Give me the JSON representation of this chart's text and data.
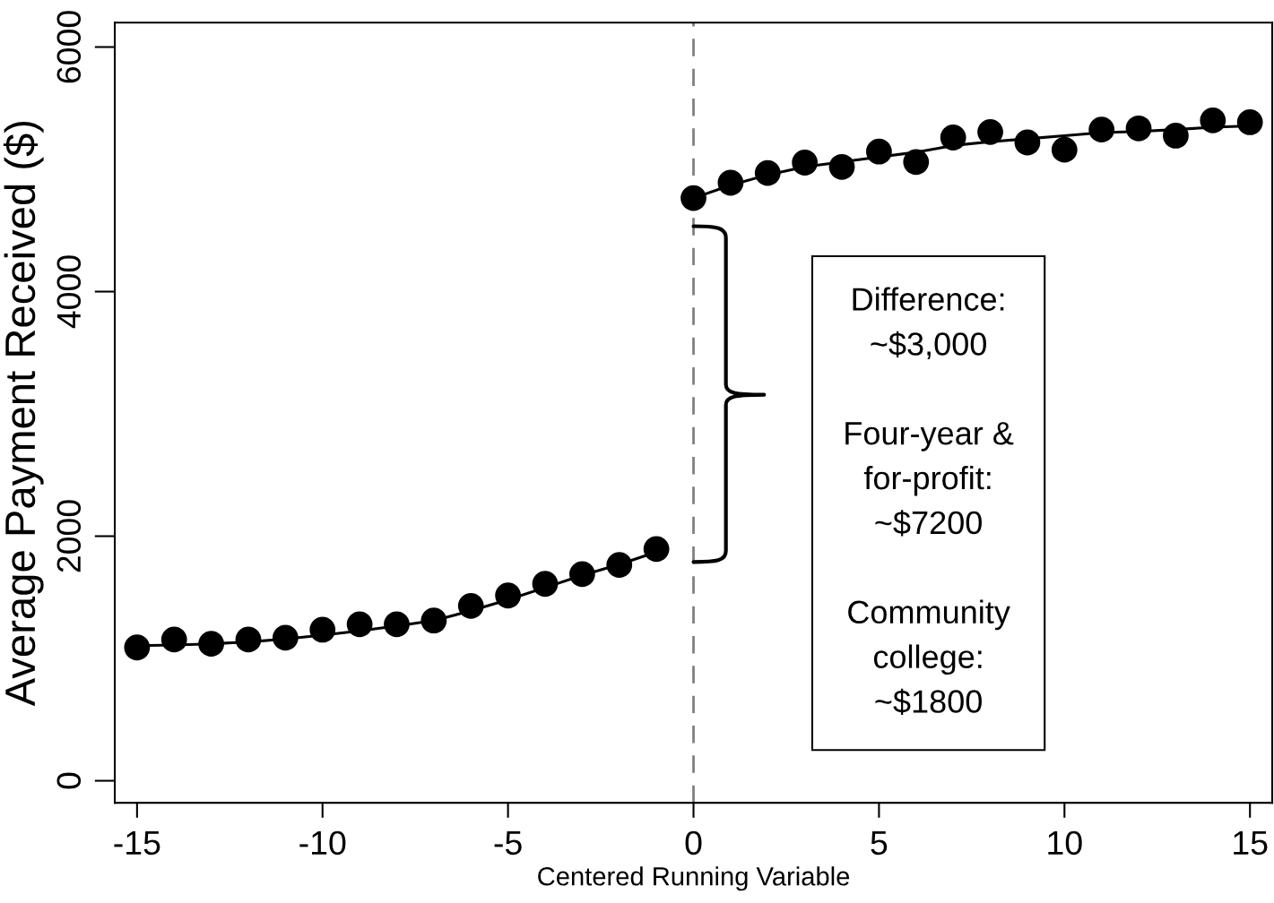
{
  "chart_data": {
    "type": "scatter",
    "xlabel": "Centered Running Variable",
    "ylabel": "Average Payment Received ($)",
    "xlim": [
      -15.6,
      15.6
    ],
    "xticks": [
      -15,
      -10,
      -5,
      0,
      5,
      10,
      15
    ],
    "ylim": [
      -180,
      6200
    ],
    "yticks": [
      0,
      2000,
      4000,
      6000
    ],
    "series": [
      {
        "marker": "circle",
        "color": "#000000",
        "x": [
          -15,
          -14,
          -13,
          -12,
          -11,
          -10,
          -9,
          -8,
          -7,
          -6,
          -5,
          -4,
          -3,
          -2,
          -1
        ],
        "values": [
          1090,
          1155,
          1120,
          1155,
          1170,
          1235,
          1280,
          1280,
          1310,
          1430,
          1515,
          1610,
          1690,
          1765,
          1895
        ]
      },
      {
        "marker": "circle",
        "color": "#000000",
        "x": [
          0,
          1,
          2,
          3,
          4,
          5,
          6,
          7,
          8,
          9,
          10,
          11,
          12,
          13,
          14,
          15
        ],
        "values": [
          4765,
          4890,
          4970,
          5055,
          5020,
          5145,
          5060,
          5260,
          5305,
          5220,
          5160,
          5325,
          5335,
          5275,
          5400,
          5385
        ]
      },
      {
        "type": "line",
        "color": "#000000",
        "x": [
          -15,
          -14,
          -13,
          -12,
          -11,
          -10,
          -9,
          -8,
          -7,
          -6,
          -5,
          -4,
          -3,
          -2,
          -1
        ],
        "values": [
          1105,
          1110,
          1120,
          1135,
          1160,
          1190,
          1225,
          1265,
          1310,
          1390,
          1480,
          1580,
          1680,
          1770,
          1870
        ]
      },
      {
        "type": "line",
        "color": "#000000",
        "x": [
          0,
          1,
          2,
          3,
          4,
          5,
          6,
          7,
          8,
          9,
          10,
          11,
          12,
          13,
          14,
          15
        ],
        "values": [
          4765,
          4870,
          4955,
          5020,
          5060,
          5100,
          5140,
          5195,
          5225,
          5250,
          5275,
          5300,
          5310,
          5325,
          5345,
          5355
        ]
      }
    ],
    "ref_lines": [
      {
        "axis": "x",
        "value": 0,
        "color": "#808080",
        "line_style": "dashed"
      }
    ],
    "annotations": [
      "Difference:\n~$3,000\n\nFour-year &\nfor-profit:\n~$7200\n\nCommunity\ncollege:\n~$1800"
    ]
  }
}
